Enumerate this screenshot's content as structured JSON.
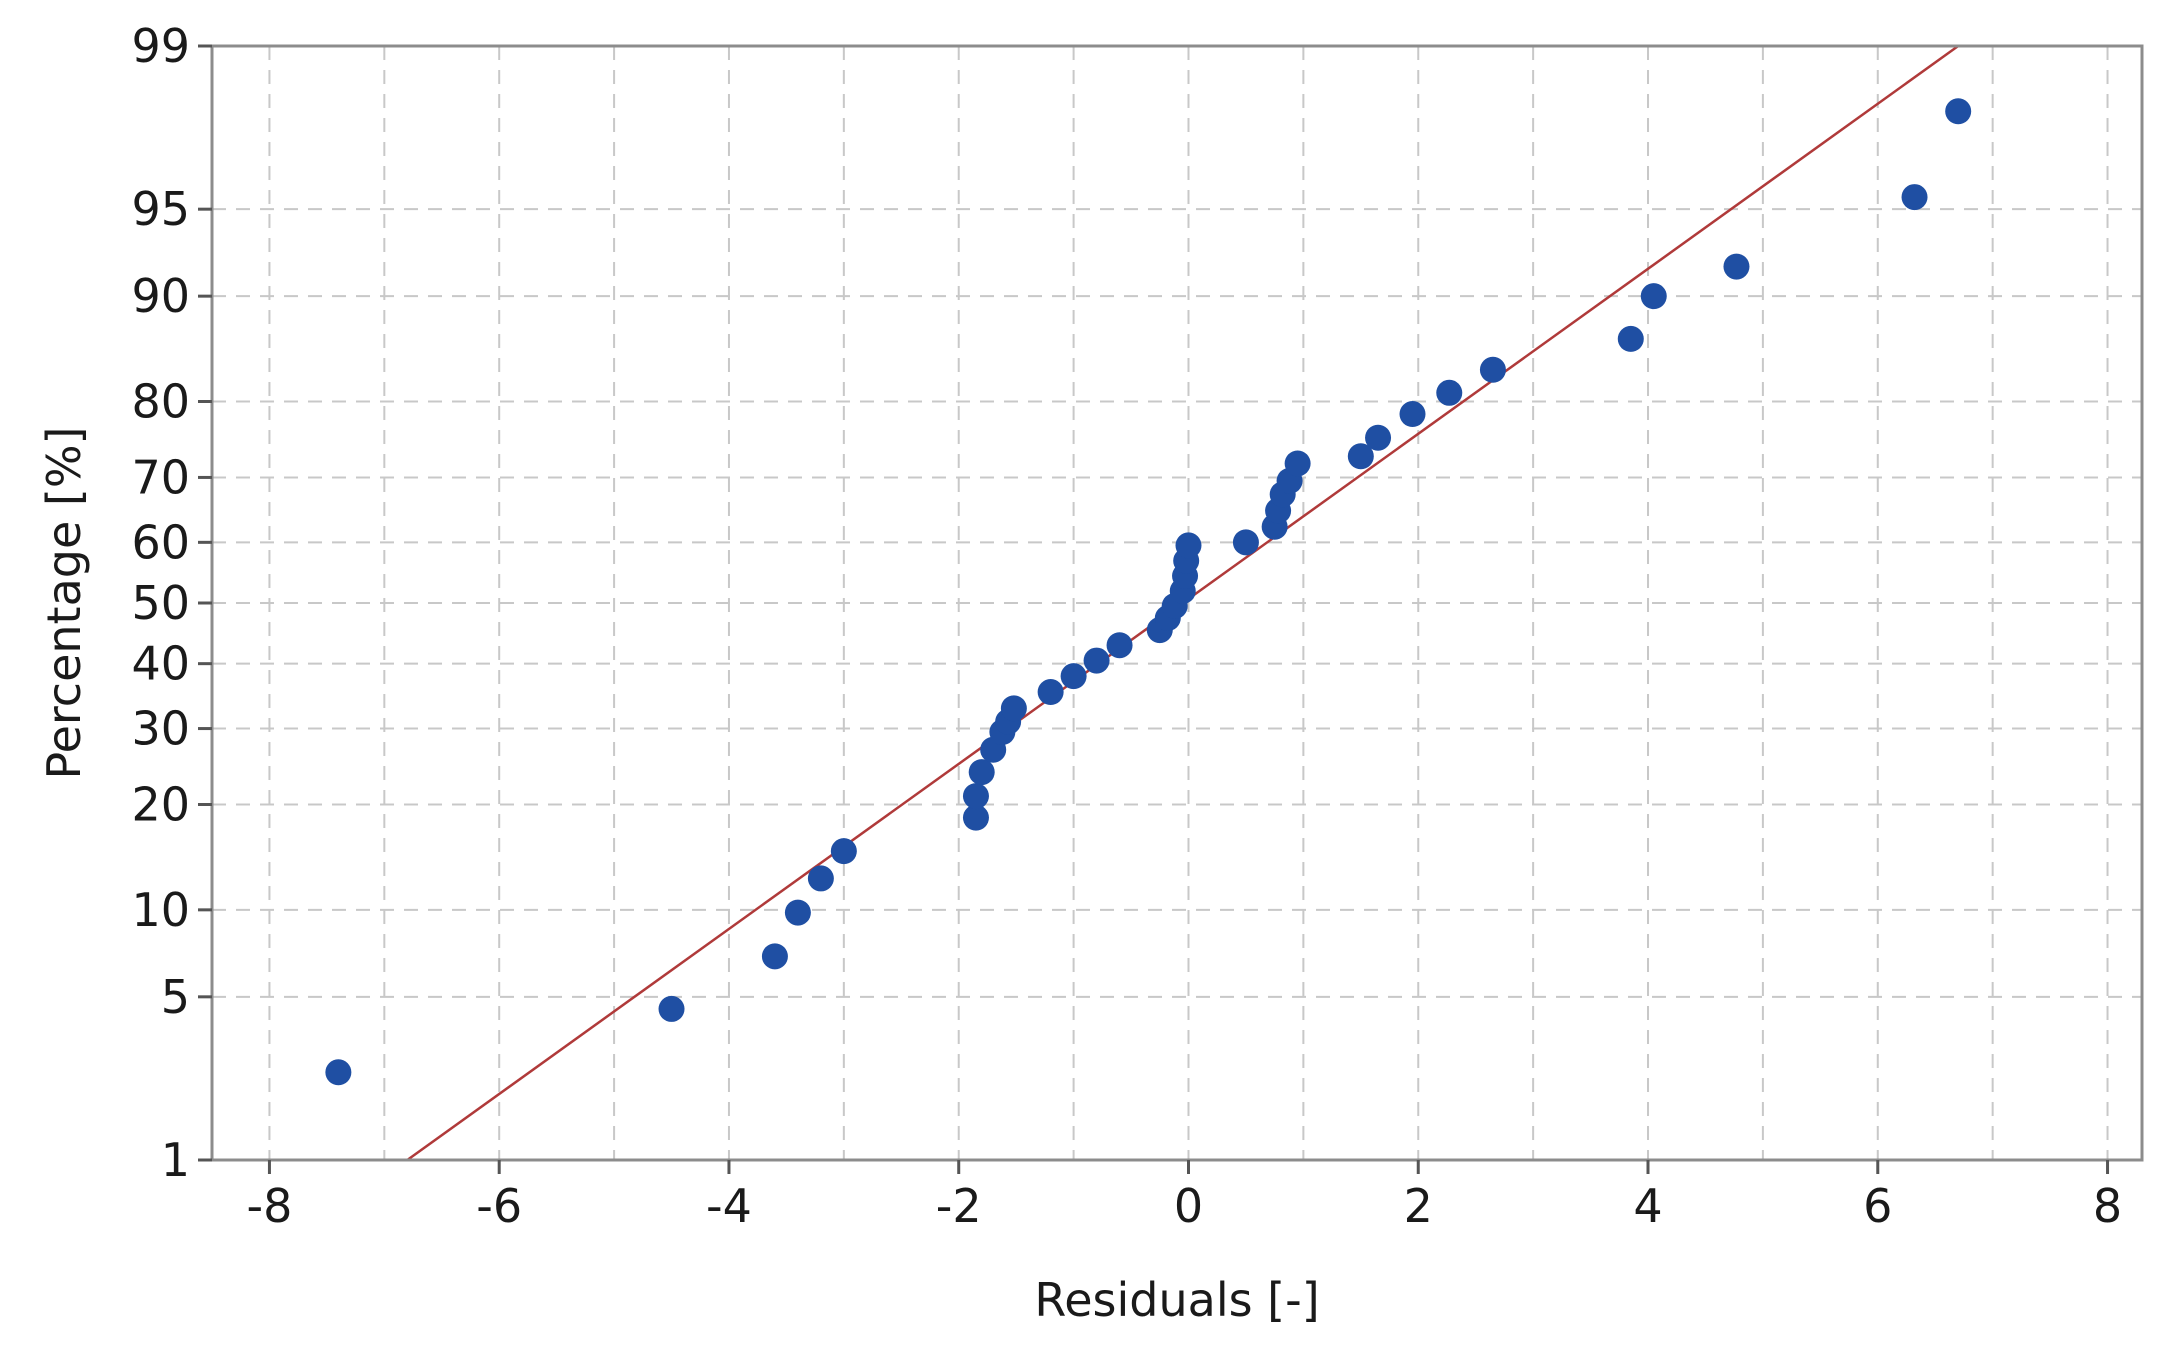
{
  "chart_data": {
    "type": "scatter",
    "title": "",
    "xlabel": "Residuals [-]",
    "ylabel": "Percentage [%]",
    "xlim": [
      -8.5,
      8.3
    ],
    "ylim": [
      1,
      99
    ],
    "y_scale": "normal-probability",
    "grid": true,
    "x_ticks": [
      "-8",
      "-6",
      "-4",
      "-2",
      "0",
      "2",
      "4",
      "6",
      "8"
    ],
    "y_ticks": [
      "1",
      "5",
      "10",
      "20",
      "30",
      "40",
      "50",
      "60",
      "70",
      "80",
      "90",
      "95",
      "99"
    ],
    "colors": {
      "points": "#1f4fa3",
      "fit_line": "#b03a3a",
      "grid": "#c8c8c8",
      "frame": "#8c8c8c"
    },
    "fit_line": {
      "x": [
        -6.8,
        6.7
      ],
      "y": [
        1,
        99
      ]
    },
    "series": [
      {
        "x": [
          -7.4,
          -4.5,
          -3.6,
          -3.4,
          -3.2,
          -3.0,
          -1.85,
          -1.85,
          -1.8,
          -1.7,
          -1.62,
          -1.57,
          -1.52,
          -1.2,
          -1.0,
          -0.8,
          -0.6,
          -0.25,
          -0.18,
          -0.12,
          -0.05,
          -0.03,
          -0.02,
          0.0,
          0.5,
          0.75,
          0.78,
          0.82,
          0.88,
          0.95,
          1.5,
          1.65,
          1.95,
          2.27,
          2.65,
          3.85,
          4.05,
          4.77,
          6.32,
          6.7
        ],
        "y": [
          2.5,
          4.5,
          7.0,
          9.8,
          12.5,
          15.0,
          18.5,
          21.0,
          24.0,
          27.0,
          29.5,
          31.0,
          33.0,
          35.5,
          38.0,
          40.5,
          43.0,
          45.5,
          47.5,
          49.5,
          52.0,
          54.5,
          57.0,
          59.5,
          60.0,
          62.5,
          65.0,
          67.5,
          69.5,
          72.0,
          73.0,
          75.5,
          78.5,
          81.0,
          83.5,
          86.5,
          90.0,
          92.0,
          95.5,
          98.0
        ]
      }
    ]
  }
}
